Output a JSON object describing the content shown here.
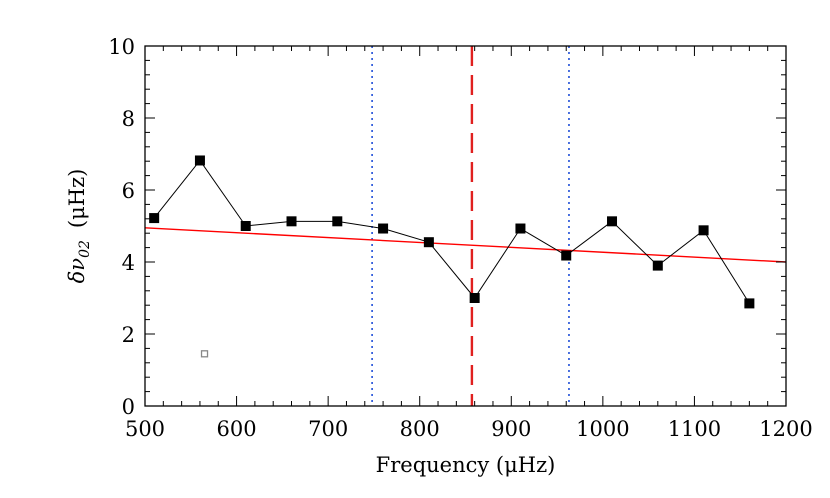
{
  "chart_data": {
    "type": "line",
    "title": "",
    "xlabel": "Frequency (μHz)",
    "ylabel_parts": {
      "delta": "δ",
      "nu": "ν",
      "sub": "02",
      "unit": "(μHz)"
    },
    "xlim": [
      500,
      1200
    ],
    "ylim": [
      0,
      10
    ],
    "xticks": [
      500,
      600,
      700,
      800,
      900,
      1000,
      1100,
      1200
    ],
    "yticks": [
      0,
      2,
      4,
      6,
      8,
      10
    ],
    "x_minor_step": 20,
    "y_minor_step": 0.4,
    "grid": false,
    "series": [
      {
        "points": [
          [
            510,
            5.22
          ],
          [
            560,
            6.82
          ],
          [
            610,
            5.0
          ],
          [
            660,
            5.13
          ],
          [
            710,
            5.13
          ],
          [
            760,
            4.93
          ],
          [
            810,
            4.55
          ],
          [
            860,
            3.0
          ],
          [
            910,
            4.93
          ],
          [
            960,
            4.18
          ],
          [
            1010,
            5.13
          ],
          [
            1060,
            3.9
          ],
          [
            1110,
            4.88
          ],
          [
            1160,
            2.85
          ]
        ],
        "color": "#000000",
        "marker": "filled-square"
      }
    ],
    "fit_line": {
      "x": [
        500,
        1200
      ],
      "y": [
        4.95,
        4.0
      ],
      "color": "#ff0000"
    },
    "vlines": [
      {
        "x": 748,
        "style": "dotted",
        "color": "#1f4fd8"
      },
      {
        "x": 963,
        "style": "dotted",
        "color": "#1f4fd8"
      },
      {
        "x": 857,
        "style": "dashed",
        "color": "#e0201f"
      }
    ],
    "extra_points": [
      {
        "x": 565,
        "y": 1.45,
        "marker": "open-square",
        "color": "#888888"
      }
    ]
  }
}
